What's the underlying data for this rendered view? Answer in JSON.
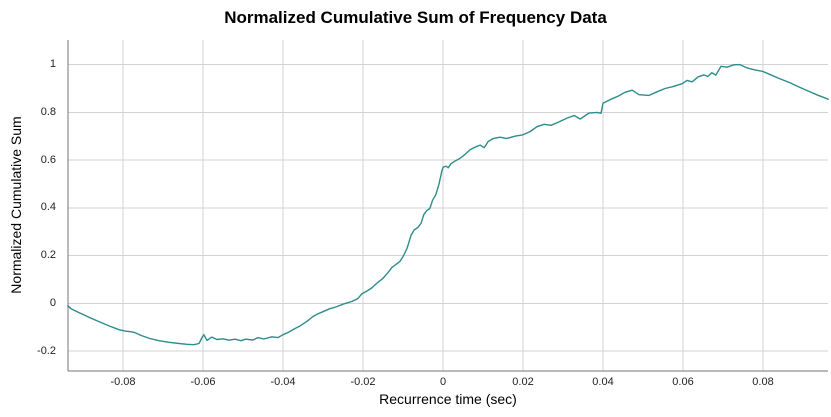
{
  "chart_data": {
    "type": "line",
    "title": "Normalized Cumulative Sum of Frequency Data",
    "xlabel": "Recurrence time (sec)",
    "ylabel": "Normalized Cumulative Sum",
    "xlim": [
      -0.09375,
      0.09625
    ],
    "ylim": [
      -0.283,
      1.103
    ],
    "x_ticks": [
      -0.08,
      -0.06,
      -0.04,
      -0.02,
      0,
      0.02,
      0.04,
      0.06,
      0.08
    ],
    "x_tick_labels": [
      "-0.08",
      "-0.06",
      "-0.04",
      "-0.02",
      "0",
      "0.02",
      "0.04",
      "0.06",
      "0.08"
    ],
    "y_ticks": [
      1,
      0.8,
      0.6,
      0.4,
      0.2,
      0,
      -0.2
    ],
    "y_tick_labels": [
      "1",
      "0.8",
      "0.6",
      "0.4",
      "0.2",
      "0",
      "-0.2"
    ],
    "grid": true,
    "legend": false,
    "line_color": "#2d8c8c",
    "grid_color": "#d3d3d3",
    "axis_color": "#757575",
    "tick_label_color": "#1f1f28",
    "series": [
      {
        "name": "normalized cumulative sum",
        "points": [
          [
            -0.0938,
            -0.01
          ],
          [
            -0.093,
            -0.022
          ],
          [
            -0.0908,
            -0.04
          ],
          [
            -0.0885,
            -0.058
          ],
          [
            -0.086,
            -0.076
          ],
          [
            -0.0835,
            -0.094
          ],
          [
            -0.081,
            -0.11
          ],
          [
            -0.0795,
            -0.116
          ],
          [
            -0.0783,
            -0.118
          ],
          [
            -0.077,
            -0.122
          ],
          [
            -0.0755,
            -0.134
          ],
          [
            -0.0733,
            -0.147
          ],
          [
            -0.071,
            -0.156
          ],
          [
            -0.0685,
            -0.163
          ],
          [
            -0.066,
            -0.168
          ],
          [
            -0.064,
            -0.171
          ],
          [
            -0.0623,
            -0.173
          ],
          [
            -0.061,
            -0.168
          ],
          [
            -0.0603,
            -0.145
          ],
          [
            -0.0598,
            -0.131
          ],
          [
            -0.059,
            -0.155
          ],
          [
            -0.0578,
            -0.141
          ],
          [
            -0.0565,
            -0.151
          ],
          [
            -0.055,
            -0.148
          ],
          [
            -0.0535,
            -0.154
          ],
          [
            -0.052,
            -0.15
          ],
          [
            -0.0505,
            -0.156
          ],
          [
            -0.0493,
            -0.15
          ],
          [
            -0.0475,
            -0.153
          ],
          [
            -0.0463,
            -0.143
          ],
          [
            -0.0448,
            -0.149
          ],
          [
            -0.0428,
            -0.14
          ],
          [
            -0.0413,
            -0.143
          ],
          [
            -0.04,
            -0.131
          ],
          [
            -0.0388,
            -0.122
          ],
          [
            -0.037,
            -0.105
          ],
          [
            -0.0358,
            -0.095
          ],
          [
            -0.034,
            -0.075
          ],
          [
            -0.0325,
            -0.055
          ],
          [
            -0.0313,
            -0.044
          ],
          [
            -0.0298,
            -0.033
          ],
          [
            -0.0283,
            -0.022
          ],
          [
            -0.0268,
            -0.015
          ],
          [
            -0.0253,
            -0.005
          ],
          [
            -0.024,
            0.002
          ],
          [
            -0.0228,
            0.008
          ],
          [
            -0.0213,
            0.02
          ],
          [
            -0.0203,
            0.04
          ],
          [
            -0.019,
            0.052
          ],
          [
            -0.0178,
            0.065
          ],
          [
            -0.0163,
            0.088
          ],
          [
            -0.015,
            0.105
          ],
          [
            -0.0138,
            0.128
          ],
          [
            -0.0128,
            0.15
          ],
          [
            -0.0118,
            0.163
          ],
          [
            -0.0108,
            0.175
          ],
          [
            -0.01,
            0.196
          ],
          [
            -0.009,
            0.23
          ],
          [
            -0.008,
            0.285
          ],
          [
            -0.0072,
            0.308
          ],
          [
            -0.0063,
            0.318
          ],
          [
            -0.0055,
            0.335
          ],
          [
            -0.0048,
            0.372
          ],
          [
            -0.004,
            0.39
          ],
          [
            -0.0033,
            0.397
          ],
          [
            -0.0026,
            0.432
          ],
          [
            -0.0018,
            0.455
          ],
          [
            -0.001,
            0.5
          ],
          [
            -0.0003,
            0.553
          ],
          [
            0.0,
            0.57
          ],
          [
            0.0008,
            0.575
          ],
          [
            0.0013,
            0.568
          ],
          [
            0.002,
            0.585
          ],
          [
            0.003,
            0.596
          ],
          [
            0.0043,
            0.608
          ],
          [
            0.0055,
            0.624
          ],
          [
            0.0068,
            0.644
          ],
          [
            0.008,
            0.654
          ],
          [
            0.0093,
            0.663
          ],
          [
            0.0103,
            0.652
          ],
          [
            0.0113,
            0.678
          ],
          [
            0.0125,
            0.69
          ],
          [
            0.0143,
            0.696
          ],
          [
            0.0158,
            0.69
          ],
          [
            0.018,
            0.7
          ],
          [
            0.02,
            0.706
          ],
          [
            0.0218,
            0.72
          ],
          [
            0.0235,
            0.74
          ],
          [
            0.0253,
            0.75
          ],
          [
            0.027,
            0.746
          ],
          [
            0.029,
            0.76
          ],
          [
            0.031,
            0.776
          ],
          [
            0.0328,
            0.787
          ],
          [
            0.0343,
            0.772
          ],
          [
            0.0365,
            0.797
          ],
          [
            0.0385,
            0.8
          ],
          [
            0.0395,
            0.796
          ],
          [
            0.04,
            0.838
          ],
          [
            0.042,
            0.855
          ],
          [
            0.0438,
            0.868
          ],
          [
            0.0455,
            0.884
          ],
          [
            0.0473,
            0.893
          ],
          [
            0.049,
            0.874
          ],
          [
            0.0515,
            0.871
          ],
          [
            0.0535,
            0.886
          ],
          [
            0.0555,
            0.9
          ],
          [
            0.0575,
            0.908
          ],
          [
            0.0598,
            0.92
          ],
          [
            0.061,
            0.934
          ],
          [
            0.0623,
            0.928
          ],
          [
            0.0638,
            0.949
          ],
          [
            0.0652,
            0.957
          ],
          [
            0.0662,
            0.95
          ],
          [
            0.0672,
            0.966
          ],
          [
            0.0682,
            0.956
          ],
          [
            0.0695,
            0.993
          ],
          [
            0.071,
            0.989
          ],
          [
            0.0727,
            0.999
          ],
          [
            0.0742,
            1.0
          ],
          [
            0.076,
            0.986
          ],
          [
            0.078,
            0.978
          ],
          [
            0.08,
            0.971
          ],
          [
            0.0822,
            0.955
          ],
          [
            0.0843,
            0.94
          ],
          [
            0.0866,
            0.925
          ],
          [
            0.0888,
            0.908
          ],
          [
            0.0912,
            0.89
          ],
          [
            0.0937,
            0.872
          ],
          [
            0.0963,
            0.855
          ]
        ]
      }
    ]
  }
}
